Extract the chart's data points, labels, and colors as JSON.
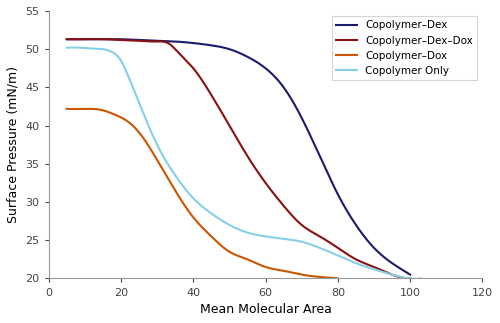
{
  "title": "",
  "xlabel": "Mean Molecular Area",
  "ylabel": "Surface Pressure (mN/m)",
  "xlim": [
    0,
    120
  ],
  "ylim": [
    20,
    55
  ],
  "xticks": [
    0,
    20,
    40,
    60,
    80,
    100,
    120
  ],
  "yticks": [
    20,
    25,
    30,
    35,
    40,
    45,
    50,
    55
  ],
  "series": [
    {
      "label": "Copolymer–Dex",
      "color": "#1a1a6e",
      "linewidth": 1.5,
      "points_x": [
        5,
        10,
        15,
        20,
        25,
        30,
        35,
        40,
        45,
        50,
        55,
        60,
        65,
        70,
        75,
        80,
        85,
        90,
        95,
        100
      ],
      "points_y": [
        51.3,
        51.3,
        51.3,
        51.3,
        51.2,
        51.1,
        51.0,
        50.8,
        50.5,
        50.0,
        49.0,
        47.5,
        45.0,
        41.0,
        36.0,
        31.0,
        27.0,
        24.0,
        22.0,
        20.5
      ]
    },
    {
      "label": "Copolymer–Dex–Dox",
      "color": "#8b1010",
      "linewidth": 1.5,
      "points_x": [
        5,
        10,
        15,
        20,
        25,
        30,
        33,
        36,
        40,
        45,
        50,
        55,
        60,
        65,
        70,
        75,
        80,
        85,
        90,
        95,
        100
      ],
      "points_y": [
        51.3,
        51.3,
        51.3,
        51.2,
        51.1,
        51.0,
        50.8,
        49.5,
        47.5,
        44.0,
        40.0,
        36.0,
        32.5,
        29.5,
        27.0,
        25.5,
        24.0,
        22.5,
        21.5,
        20.5,
        20.0
      ]
    },
    {
      "label": "Copolymer–Dox",
      "color": "#cc5500",
      "linewidth": 1.5,
      "points_x": [
        5,
        10,
        15,
        18,
        22,
        26,
        30,
        35,
        40,
        45,
        50,
        55,
        60,
        65,
        70,
        75,
        80
      ],
      "points_y": [
        42.2,
        42.2,
        42.0,
        41.5,
        40.5,
        38.5,
        35.5,
        31.5,
        28.0,
        25.5,
        23.5,
        22.5,
        21.5,
        21.0,
        20.5,
        20.2,
        20.0
      ]
    },
    {
      "label": "Copolymer Only",
      "color": "#87ceeb",
      "linewidth": 1.5,
      "points_x": [
        5,
        8,
        12,
        15,
        18,
        20,
        22,
        25,
        30,
        35,
        40,
        45,
        50,
        55,
        60,
        65,
        70,
        75,
        80,
        85,
        90,
        95,
        100,
        103
      ],
      "points_y": [
        50.2,
        50.2,
        50.1,
        50.0,
        49.5,
        48.5,
        46.5,
        43.0,
        37.5,
        33.5,
        30.5,
        28.5,
        27.0,
        26.0,
        25.5,
        25.2,
        24.8,
        24.0,
        23.0,
        22.0,
        21.2,
        20.5,
        20.0,
        20.0
      ]
    }
  ],
  "legend_loc": "upper right",
  "background_color": "#ffffff",
  "figsize": [
    5.0,
    3.23
  ],
  "dpi": 100
}
